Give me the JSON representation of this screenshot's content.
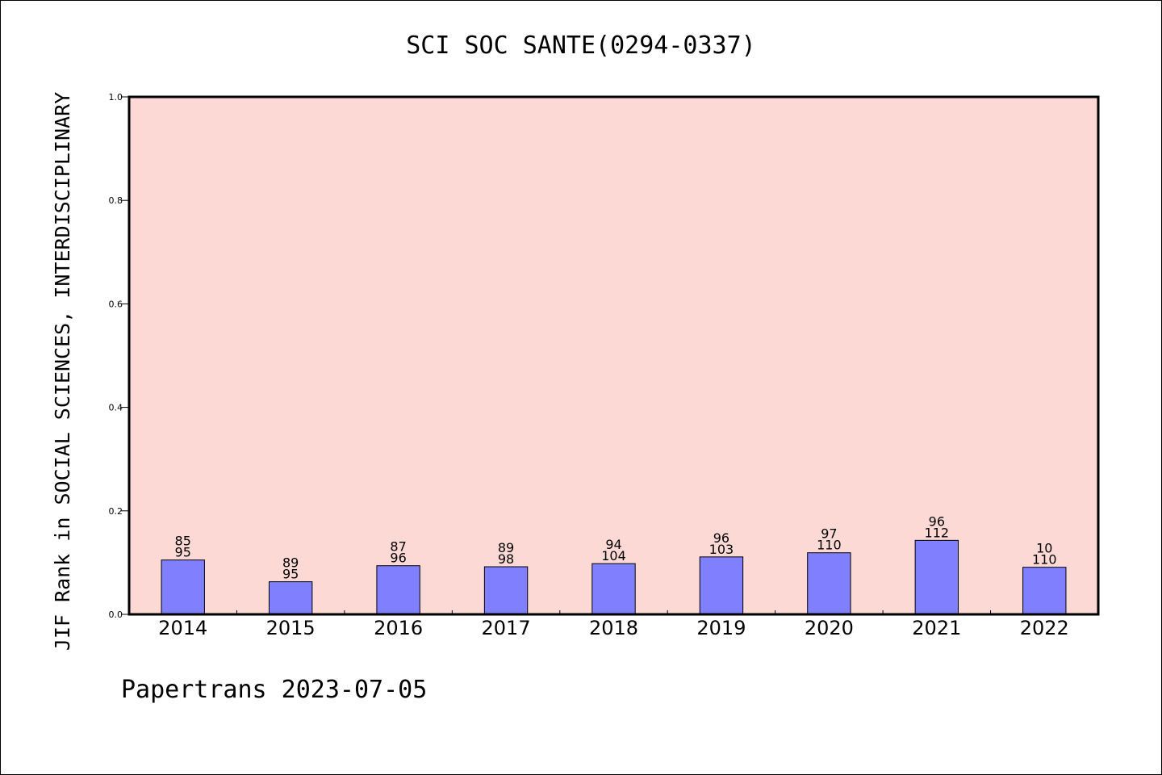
{
  "chart_data": {
    "type": "bar",
    "title": "SCI SOC SANTE(0294-0337)",
    "ylabel": "JIF Rank in SOCIAL SCIENCES, INTERDISCIPLINARY",
    "xlabel": "",
    "ylim": [
      0,
      1.0
    ],
    "yticks": [
      "0.0",
      "0.2",
      "0.4",
      "0.6",
      "0.8",
      "1.0"
    ],
    "grid": false,
    "categories": [
      "2014",
      "2015",
      "2016",
      "2017",
      "2018",
      "2019",
      "2020",
      "2021",
      "2022"
    ],
    "values": [
      0.105,
      0.063,
      0.094,
      0.092,
      0.098,
      0.111,
      0.119,
      0.143,
      0.091
    ],
    "label_top": [
      "85",
      "89",
      "87",
      "89",
      "94",
      "96",
      "97",
      "96",
      "10"
    ],
    "label_bottom": [
      "95",
      "95",
      "96",
      "98",
      "104",
      "103",
      "110",
      "112",
      "110"
    ],
    "colors": {
      "plot_bg": "#fdd9d6",
      "bar": "#8080ff",
      "bar_edge": "#000000"
    }
  },
  "footer": {
    "text": "Papertrans 2023-07-05"
  }
}
